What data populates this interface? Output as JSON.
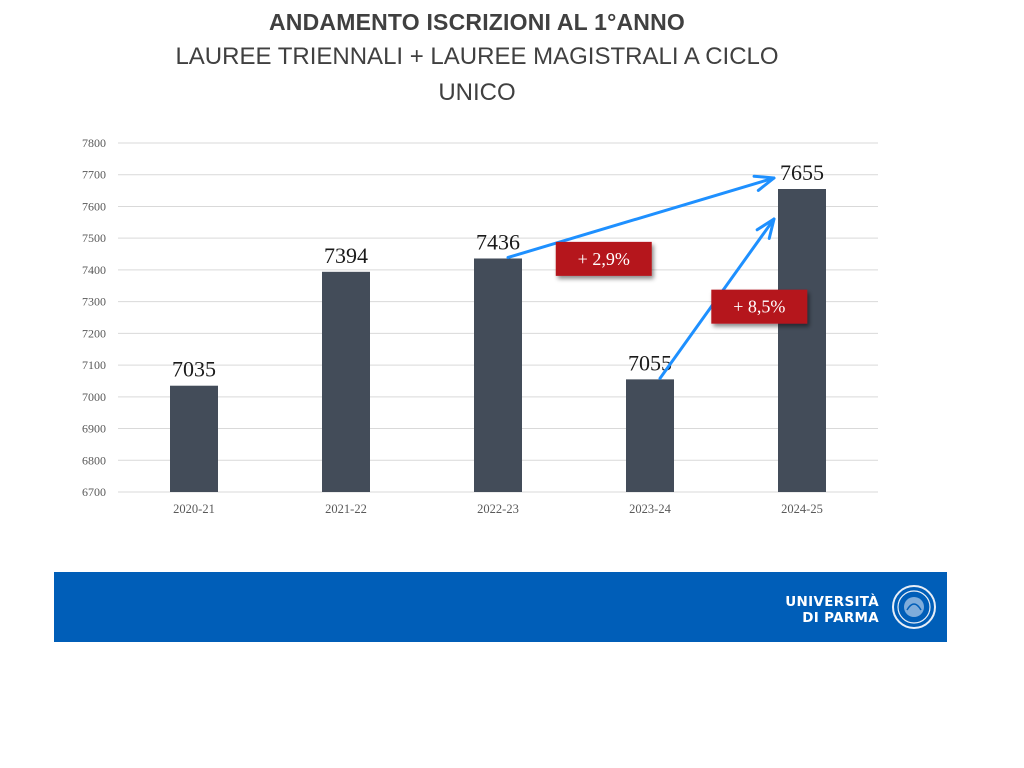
{
  "header": {
    "title": "ANDAMENTO ISCRIZIONI AL 1°ANNO",
    "subtitle": "LAUREE TRIENNALI + LAUREE MAGISTRALI A CICLO UNICO"
  },
  "chart_data": {
    "type": "bar",
    "title": "ANDAMENTO ISCRIZIONI AL 1°ANNO",
    "subtitle": "LAUREE TRIENNALI + LAUREE MAGISTRALI A CICLO UNICO",
    "categories": [
      "2020-21",
      "2021-22",
      "2022-23",
      "2023-24",
      "2024-25"
    ],
    "values": [
      7035,
      7394,
      7436,
      7055,
      7655
    ],
    "data_labels": [
      "7035",
      "7394",
      "7436",
      "7055",
      "7655"
    ],
    "ylim": [
      6700,
      7800
    ],
    "yticks": [
      6700,
      6800,
      6900,
      7000,
      7100,
      7200,
      7300,
      7400,
      7500,
      7600,
      7700,
      7800
    ],
    "grid": true,
    "legend": "none",
    "bar_color": "#434c59",
    "annotations": [
      {
        "text": "+ 2,9%",
        "from": "2022-23",
        "to": "2024-25"
      },
      {
        "text": "+ 8,5%",
        "from": "2023-24",
        "to": "2024-25"
      }
    ],
    "annotation_color": "#b5121b",
    "arrow_color": "#1e90ff"
  },
  "footer": {
    "brand_line1": "UNIVERSITÀ",
    "brand_line2": "DI PARMA",
    "background": "#005eb8"
  }
}
